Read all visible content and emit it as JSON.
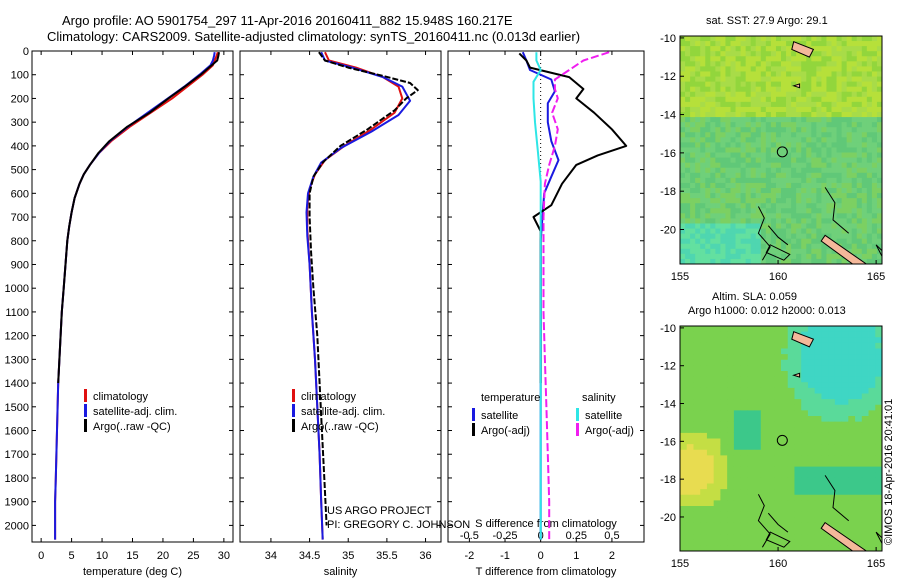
{
  "header": {
    "line1": "Argo profile: AO 5901754_297 11-Apr-2016 20160411_882 15.948S 160.217E",
    "line2": "Climatology: CARS2009. Satellite-adjusted climatology: synTS_20160411.nc (0.013d earlier)"
  },
  "credit": {
    "line1": "US ARGO PROJECT",
    "line2": "PI: GREGORY C. JOHNSON"
  },
  "watermark": "©IMOS 18-Apr-2016 20:41:01",
  "colors": {
    "climatology": "#e01010",
    "satellite": "#1a1ae0",
    "argo": "#000000",
    "satellite_salinity": "#2ee6e6",
    "argo_salinity_adj": "#f01ef0"
  },
  "chart_data": [
    {
      "type": "line",
      "id": "temperature",
      "xlabel": "temperature (deg C)",
      "ylabel": "",
      "xlim": [
        -1.5,
        31.5
      ],
      "ylim": [
        0,
        2070
      ],
      "xticks": [
        0,
        5,
        10,
        15,
        20,
        25,
        30
      ],
      "yticks": [
        0,
        100,
        200,
        300,
        400,
        500,
        600,
        700,
        800,
        900,
        1000,
        1100,
        1200,
        1300,
        1400,
        1500,
        1600,
        1700,
        1800,
        1900,
        2000
      ],
      "y_reversed": true,
      "legend": [
        {
          "label": "climatology",
          "color": "#e01010"
        },
        {
          "label": "satellite-adj. clim.",
          "color": "#1a1ae0"
        },
        {
          "label": "Argo(..raw -QC)",
          "color": "#000000"
        }
      ],
      "series": [
        {
          "key": "climatology",
          "color": "#e01010",
          "points": [
            [
              29.0,
              5
            ],
            [
              28.8,
              20
            ],
            [
              28.5,
              40
            ],
            [
              28.2,
              60
            ],
            [
              26.5,
              100
            ],
            [
              24.0,
              150
            ],
            [
              21.5,
              200
            ],
            [
              18.0,
              260
            ],
            [
              14.5,
              320
            ],
            [
              11.5,
              380
            ],
            [
              9.5,
              430
            ],
            [
              8.0,
              480
            ],
            [
              7.0,
              520
            ],
            [
              6.3,
              560
            ],
            [
              5.5,
              620
            ],
            [
              5.0,
              680
            ],
            [
              4.6,
              740
            ],
            [
              4.3,
              800
            ],
            [
              4.0,
              900
            ],
            [
              3.7,
              1000
            ],
            [
              3.4,
              1100
            ],
            [
              3.2,
              1200
            ],
            [
              3.0,
              1300
            ],
            [
              2.8,
              1400
            ],
            [
              2.7,
              1500
            ],
            [
              2.6,
              1600
            ],
            [
              2.5,
              1700
            ],
            [
              2.4,
              1800
            ],
            [
              2.3,
              1900
            ],
            [
              2.3,
              2000
            ],
            [
              2.3,
              2060
            ]
          ]
        },
        {
          "key": "satellite",
          "color": "#1a1ae0",
          "points": [
            [
              28.5,
              5
            ],
            [
              28.4,
              20
            ],
            [
              28.2,
              40
            ],
            [
              27.8,
              60
            ],
            [
              26.0,
              100
            ],
            [
              23.5,
              150
            ],
            [
              20.8,
              200
            ],
            [
              17.5,
              260
            ],
            [
              14.2,
              320
            ],
            [
              11.3,
              380
            ],
            [
              9.5,
              430
            ],
            [
              8.0,
              480
            ],
            [
              7.0,
              520
            ],
            [
              6.3,
              560
            ],
            [
              5.5,
              620
            ],
            [
              5.0,
              680
            ],
            [
              4.6,
              740
            ],
            [
              4.3,
              800
            ],
            [
              4.0,
              900
            ],
            [
              3.7,
              1000
            ],
            [
              3.4,
              1100
            ],
            [
              3.2,
              1200
            ],
            [
              3.0,
              1300
            ],
            [
              2.8,
              1400
            ],
            [
              2.7,
              1500
            ],
            [
              2.6,
              1600
            ],
            [
              2.5,
              1700
            ],
            [
              2.4,
              1800
            ],
            [
              2.3,
              1900
            ],
            [
              2.3,
              2000
            ],
            [
              2.3,
              2060
            ]
          ]
        },
        {
          "key": "argo",
          "color": "#000000",
          "points": [
            [
              29.2,
              5
            ],
            [
              29.1,
              20
            ],
            [
              28.9,
              40
            ],
            [
              28.0,
              60
            ],
            [
              26.2,
              100
            ],
            [
              23.6,
              150
            ],
            [
              20.9,
              200
            ],
            [
              17.8,
              260
            ],
            [
              14.1,
              320
            ],
            [
              11.2,
              380
            ],
            [
              9.4,
              430
            ],
            [
              8.0,
              480
            ],
            [
              7.0,
              520
            ],
            [
              6.3,
              560
            ],
            [
              5.5,
              620
            ],
            [
              5.0,
              680
            ],
            [
              4.6,
              740
            ],
            [
              4.3,
              800
            ],
            [
              4.0,
              900
            ],
            [
              3.7,
              1000
            ],
            [
              3.4,
              1100
            ],
            [
              3.2,
              1200
            ],
            [
              3.0,
              1300
            ],
            [
              2.8,
              1400
            ]
          ]
        }
      ]
    },
    {
      "type": "line",
      "id": "salinity",
      "xlabel": "salinity",
      "ylabel": "",
      "xlim": [
        33.6,
        36.2
      ],
      "ylim": [
        0,
        2070
      ],
      "xticks": [
        34,
        34.5,
        35,
        35.5,
        36
      ],
      "y_reversed": true,
      "legend": [
        {
          "label": "climatology",
          "color": "#e01010"
        },
        {
          "label": "satellite-adj. clim.",
          "color": "#1a1ae0"
        },
        {
          "label": "Argo(..raw -QC)",
          "color": "#000000"
        }
      ],
      "series": [
        {
          "key": "climatology",
          "color": "#e01010",
          "points": [
            [
              34.7,
              5
            ],
            [
              34.75,
              40
            ],
            [
              35.1,
              70
            ],
            [
              35.45,
              110
            ],
            [
              35.65,
              150
            ],
            [
              35.7,
              200
            ],
            [
              35.6,
              260
            ],
            [
              35.3,
              330
            ],
            [
              34.95,
              400
            ],
            [
              34.7,
              460
            ],
            [
              34.57,
              520
            ],
            [
              34.5,
              580
            ],
            [
              34.47,
              650
            ],
            [
              34.47,
              750
            ],
            [
              34.5,
              900
            ],
            [
              34.53,
              1100
            ],
            [
              34.57,
              1300
            ],
            [
              34.6,
              1500
            ],
            [
              34.63,
              1700
            ],
            [
              34.65,
              1900
            ],
            [
              34.67,
              2060
            ]
          ]
        },
        {
          "key": "satellite",
          "color": "#1a1ae0",
          "points": [
            [
              34.65,
              5
            ],
            [
              34.7,
              40
            ],
            [
              35.05,
              70
            ],
            [
              35.45,
              110
            ],
            [
              35.7,
              150
            ],
            [
              35.8,
              210
            ],
            [
              35.65,
              270
            ],
            [
              35.3,
              340
            ],
            [
              34.9,
              410
            ],
            [
              34.65,
              470
            ],
            [
              34.55,
              530
            ],
            [
              34.48,
              600
            ],
            [
              34.46,
              680
            ],
            [
              34.47,
              780
            ],
            [
              34.5,
              900
            ],
            [
              34.53,
              1100
            ],
            [
              34.57,
              1300
            ],
            [
              34.6,
              1500
            ],
            [
              34.63,
              1700
            ],
            [
              34.65,
              1900
            ],
            [
              34.67,
              2060
            ]
          ]
        },
        {
          "key": "argo",
          "color": "#000000",
          "points": [
            [
              34.62,
              5
            ],
            [
              34.7,
              40
            ],
            [
              35.0,
              70
            ],
            [
              35.45,
              105
            ],
            [
              35.8,
              135
            ],
            [
              35.9,
              165
            ],
            [
              35.75,
              200
            ],
            [
              35.6,
              250
            ],
            [
              35.25,
              330
            ],
            [
              34.9,
              400
            ],
            [
              34.67,
              470
            ],
            [
              34.55,
              530
            ],
            [
              34.5,
              600
            ],
            [
              34.5,
              700
            ],
            [
              34.52,
              850
            ],
            [
              34.55,
              1000
            ],
            [
              34.6,
              1200
            ],
            [
              34.63,
              1400
            ],
            [
              34.66,
              1600
            ],
            [
              34.69,
              1800
            ],
            [
              34.72,
              2000
            ]
          ]
        }
      ]
    },
    {
      "type": "line",
      "id": "differences",
      "xlabel": "T difference from climatology",
      "xlabel_top": "S difference from climatology",
      "ylabel": "",
      "xlim": [
        -2.6,
        2.9
      ],
      "ylim": [
        0,
        2070
      ],
      "xticks": [
        -2,
        -1,
        0,
        1,
        2
      ],
      "sticks": [
        -0.5,
        -0.25,
        0,
        0.25,
        0.5
      ],
      "y_reversed": true,
      "legend_headers": [
        "temperature",
        "salinity"
      ],
      "legend": [
        {
          "label": "satellite",
          "color": "#1a1ae0"
        },
        {
          "label": "Argo(-adj)",
          "color": "#000000"
        },
        {
          "label": "satellite",
          "color": "#2ee6e6"
        },
        {
          "label": "Argo(-adj)",
          "color": "#f01ef0"
        }
      ],
      "series": [
        {
          "key": "t_satellite",
          "color": "#1a1ae0",
          "points": [
            [
              -0.5,
              5
            ],
            [
              -0.4,
              40
            ],
            [
              -0.3,
              80
            ],
            [
              0.3,
              120
            ],
            [
              0.4,
              170
            ],
            [
              0.2,
              220
            ],
            [
              0.2,
              300
            ],
            [
              0.3,
              380
            ],
            [
              0.5,
              460
            ],
            [
              0.3,
              530
            ],
            [
              0.1,
              600
            ],
            [
              0,
              800
            ],
            [
              0,
              2060
            ]
          ]
        },
        {
          "key": "t_argo",
          "color": "#000000",
          "points": [
            [
              -0.6,
              10
            ],
            [
              -0.4,
              40
            ],
            [
              -0.3,
              70
            ],
            [
              0.8,
              110
            ],
            [
              1.2,
              160
            ],
            [
              1.0,
              200
            ],
            [
              1.5,
              260
            ],
            [
              2.0,
              330
            ],
            [
              2.4,
              400
            ],
            [
              1.6,
              440
            ],
            [
              1.0,
              480
            ],
            [
              0.6,
              560
            ],
            [
              0.3,
              650
            ],
            [
              -0.2,
              700
            ],
            [
              0,
              760
            ],
            [
              0,
              1400
            ]
          ]
        },
        {
          "key": "s_satellite",
          "color": "#2ee6e6",
          "points": [
            [
              -0.03,
              5
            ],
            [
              -0.03,
              40
            ],
            [
              0.0,
              80
            ],
            [
              -0.05,
              130
            ],
            [
              -0.05,
              200
            ],
            [
              -0.04,
              300
            ],
            [
              -0.02,
              420
            ],
            [
              0.0,
              550
            ],
            [
              0.0,
              800
            ],
            [
              0.0,
              2060
            ]
          ]
        },
        {
          "key": "s_argo",
          "color": "#f01ef0",
          "points": [
            [
              0.48,
              5
            ],
            [
              0.3,
              40
            ],
            [
              0.2,
              80
            ],
            [
              0.1,
              120
            ],
            [
              0.1,
              160
            ],
            [
              0.12,
              200
            ],
            [
              0.08,
              260
            ],
            [
              0.12,
              330
            ],
            [
              0.1,
              400
            ],
            [
              0.06,
              480
            ],
            [
              0.03,
              560
            ],
            [
              0.02,
              700
            ],
            [
              0.02,
              900
            ],
            [
              0.02,
              1100
            ],
            [
              0.03,
              1300
            ],
            [
              0.04,
              1500
            ],
            [
              0.05,
              1700
            ],
            [
              0.06,
              1900
            ],
            [
              0.06,
              2060
            ]
          ]
        }
      ]
    },
    {
      "type": "heatmap",
      "id": "map-sst",
      "title": "sat. SST: 27.9 Argo: 29.1",
      "xticks": [
        155,
        160,
        165
      ],
      "yticks": [
        -10,
        -12,
        -14,
        -16,
        -18,
        -20
      ],
      "xlim": [
        155,
        165.3
      ],
      "ylim": [
        -21.8,
        -9.9
      ],
      "marker": {
        "lon": 160.217,
        "lat": -15.948
      }
    },
    {
      "type": "heatmap",
      "id": "map-sla",
      "title_line1": "Altim. SLA: 0.059",
      "title_line2": "Argo h1000: 0.012 h2000: 0.013",
      "xticks": [
        155,
        160,
        165
      ],
      "yticks": [
        -10,
        -12,
        -14,
        -16,
        -18,
        -20
      ],
      "xlim": [
        155,
        165.3
      ],
      "ylim": [
        -21.8,
        -9.9
      ],
      "marker": {
        "lon": 160.217,
        "lat": -15.948
      }
    }
  ]
}
